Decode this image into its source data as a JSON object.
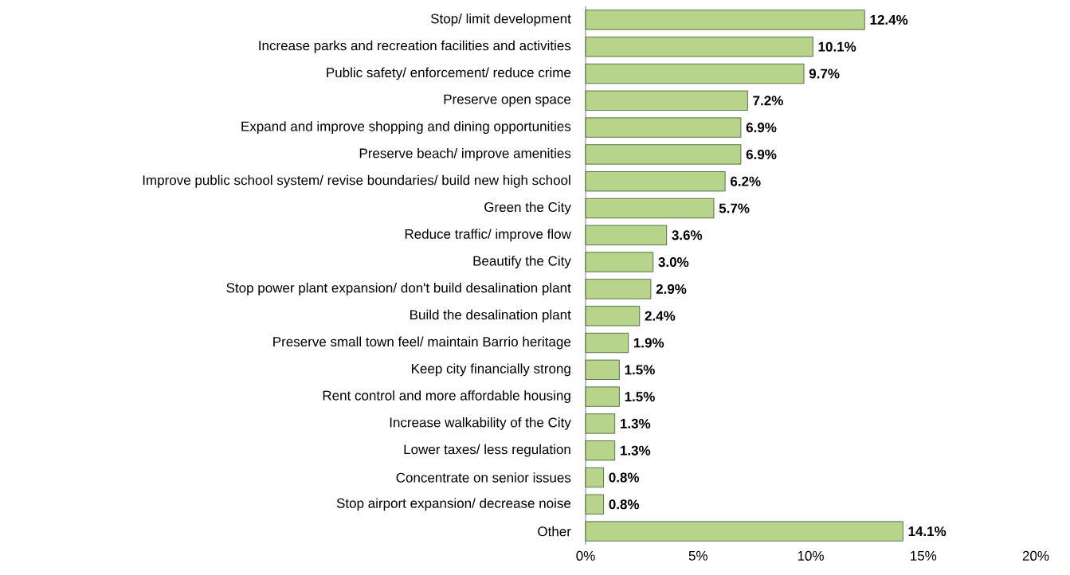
{
  "chart_data": {
    "type": "bar",
    "orientation": "horizontal",
    "categories": [
      "Stop/ limit development",
      "Increase parks and recreation facilities and activities",
      "Public safety/ enforcement/ reduce crime",
      "Preserve open space",
      "Expand and improve shopping and dining opportunities",
      "Preserve beach/ improve amenities",
      "Improve public school system/ revise boundaries/ build new high school",
      "Green the City",
      "Reduce traffic/ improve flow",
      "Beautify the City",
      "Stop power plant expansion/ don't build desalination plant",
      "Build the desalination plant",
      "Preserve small town feel/ maintain Barrio heritage",
      "Keep city financially strong",
      "Rent control and more affordable housing",
      "Increase walkability of the City",
      "Lower taxes/ less regulation",
      "Concentrate on senior issues",
      "Stop airport expansion/ decrease noise",
      "Other"
    ],
    "values": [
      12.4,
      10.1,
      9.7,
      7.2,
      6.9,
      6.9,
      6.2,
      5.7,
      3.6,
      3.0,
      2.9,
      2.4,
      1.9,
      1.5,
      1.5,
      1.3,
      1.3,
      0.8,
      0.8,
      14.1
    ],
    "value_labels": [
      "12.4%",
      "10.1%",
      "9.7%",
      "7.2%",
      "6.9%",
      "6.9%",
      "6.2%",
      "5.7%",
      "3.6%",
      "3.0%",
      "2.9%",
      "2.4%",
      "1.9%",
      "1.5%",
      "1.5%",
      "1.3%",
      "1.3%",
      "0.8%",
      "0.8%",
      "14.1%"
    ],
    "color": "#b8d48a",
    "xlim": [
      0,
      20
    ],
    "xticks": [
      {
        "value": 0,
        "label": "0%"
      },
      {
        "value": 5,
        "label": "5%"
      },
      {
        "value": 10,
        "label": "10%"
      },
      {
        "value": 15,
        "label": "15%"
      },
      {
        "value": 20,
        "label": "20%"
      }
    ]
  }
}
